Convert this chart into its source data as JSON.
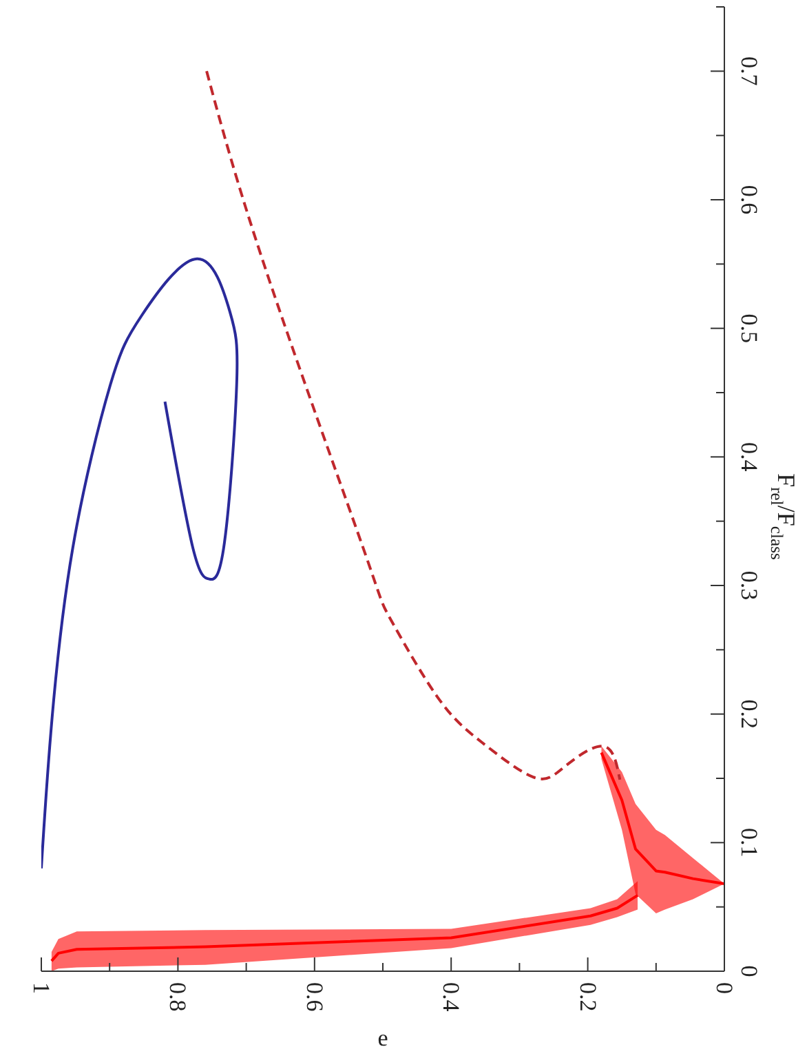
{
  "chart_data": {
    "type": "line",
    "xlabel": "e",
    "ylabel": "F$_{rel}$/F$_{class}$",
    "xlim": [
      1,
      0
    ],
    "ylim": [
      0,
      0.75
    ],
    "xticks": [
      {
        "value": 1,
        "label": "1"
      },
      {
        "value": 0.9,
        "label": null
      },
      {
        "value": 0.8,
        "label": "0.8"
      },
      {
        "value": 0.7,
        "label": null
      },
      {
        "value": 0.6,
        "label": "0.6"
      },
      {
        "value": 0.5,
        "label": null
      },
      {
        "value": 0.4,
        "label": "0.4"
      },
      {
        "value": 0.3,
        "label": null
      },
      {
        "value": 0.2,
        "label": "0.2"
      },
      {
        "value": 0.1,
        "label": null
      },
      {
        "value": 0,
        "label": "0"
      }
    ],
    "yticks": [
      0,
      {
        "value": 0.05,
        "label": null
      },
      0.1,
      {
        "value": 0.15,
        "label": null
      },
      0.2,
      {
        "value": 0.25,
        "label": null
      },
      0.3,
      {
        "value": 0.35,
        "label": null
      },
      0.4,
      {
        "value": 0.45,
        "label": null
      },
      0.5,
      {
        "value": 0.55,
        "label": null
      },
      0.6,
      {
        "value": 0.65,
        "label": null
      },
      0.7,
      {
        "value": 0.75,
        "label": null
      }
    ],
    "series": [
      {
        "type": "line",
        "color": "#2a2a9a",
        "line_style": "solid",
        "x": [
          1.0,
          0.986,
          0.954,
          0.899,
          0.853,
          0.772,
          0.724,
          0.714,
          0.732,
          0.754,
          0.778,
          0.819
        ],
        "values": [
          0.08,
          0.186,
          0.329,
          0.456,
          0.51,
          0.554,
          0.513,
          0.456,
          0.333,
          0.305,
          0.329,
          0.443
        ]
      },
      {
        "type": "line",
        "color": "#c0282d",
        "line_style": "dashed",
        "x": [
          0.758,
          0.671,
          0.53,
          0.49,
          0.421,
          0.355,
          0.28,
          0.234,
          0.177,
          0.153
        ],
        "values": [
          0.7,
          0.545,
          0.331,
          0.275,
          0.214,
          0.178,
          0.151,
          0.159,
          0.175,
          0.149
        ]
      },
      {
        "type": "line",
        "color": "#ff0000",
        "line_style": "solid",
        "x": [
          0.985,
          0.975,
          0.948,
          0.76,
          0.4,
          0.196,
          0.157,
          0.127
        ],
        "values": [
          0.008,
          0.014,
          0.017,
          0.019,
          0.026,
          0.043,
          0.049,
          0.059
        ],
        "lower": [
          0.0,
          0.002,
          0.003,
          0.005,
          0.018,
          0.036,
          0.042,
          0.048
        ],
        "upper": [
          0.015,
          0.025,
          0.031,
          0.032,
          0.033,
          0.049,
          0.056,
          0.07
        ]
      },
      {
        "type": "line",
        "color": "#ff0000",
        "line_style": "solid",
        "x": [
          0.18,
          0.15,
          0.13,
          0.1,
          0.087,
          0.046,
          0.0
        ],
        "values": [
          0.17,
          0.133,
          0.095,
          0.078,
          0.077,
          0.072,
          0.068
        ],
        "lower": [
          0.165,
          0.11,
          0.06,
          0.045,
          0.048,
          0.056,
          0.068
        ],
        "upper": [
          0.175,
          0.155,
          0.13,
          0.11,
          0.106,
          0.088,
          0.068
        ]
      }
    ]
  }
}
